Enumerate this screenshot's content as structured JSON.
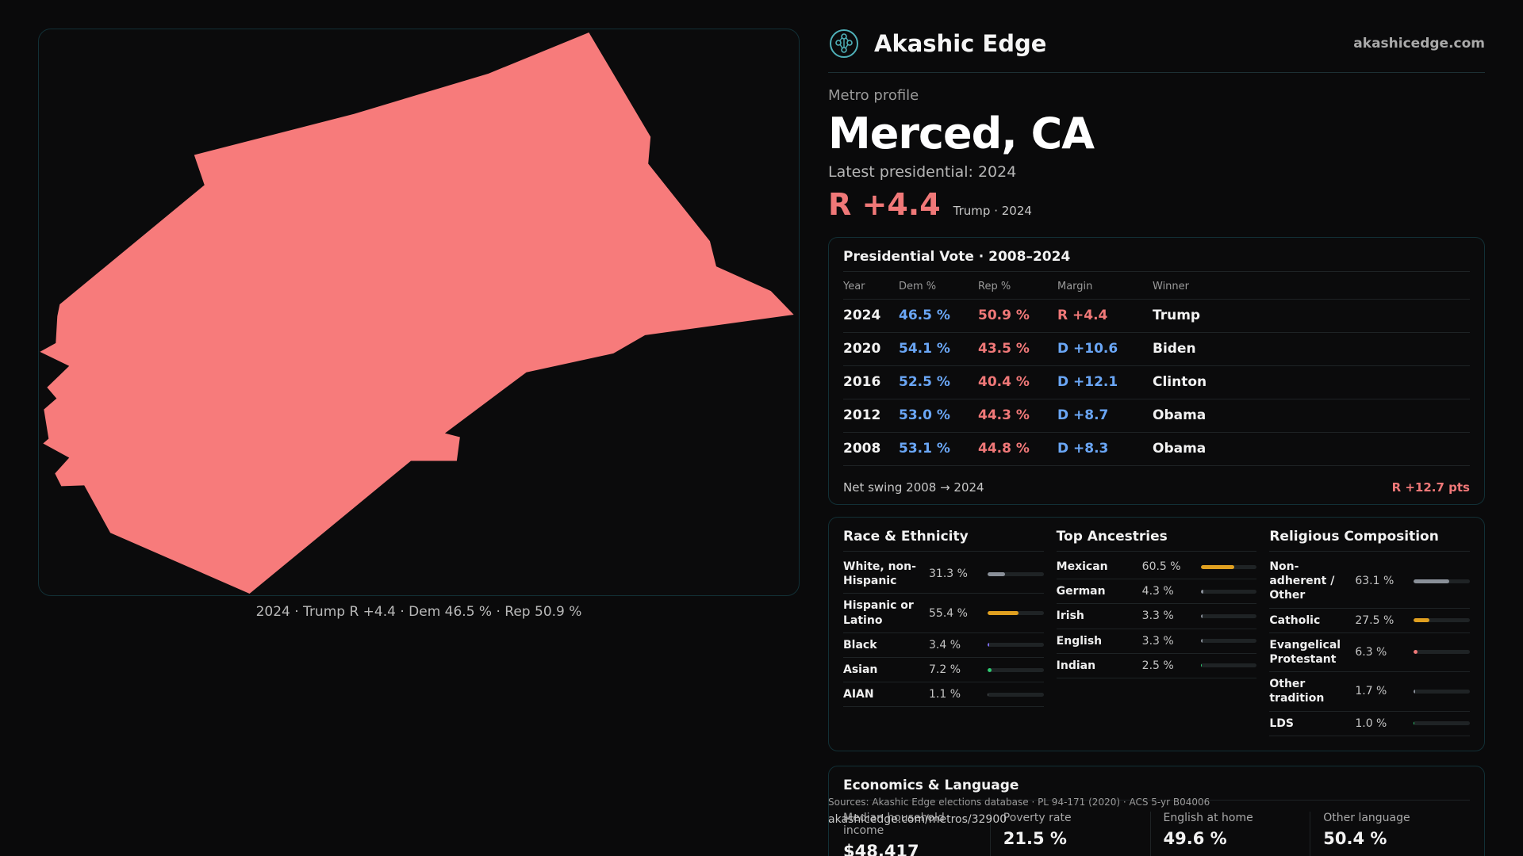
{
  "map": {
    "caption": "2024 · Trump R +4.4 · Dem 46.5 % · Rep 50.9 %",
    "fill_color": "#f77b7b"
  },
  "header": {
    "logo_icon": "tree-of-life-logo-icon",
    "brand": "Akashic Edge",
    "site": "akashicedge.com"
  },
  "profile": {
    "eyebrow": "Metro profile",
    "name": "Merced, CA",
    "latest_label": "Latest presidential: 2024",
    "margin": "R +4.4",
    "margin_sub": "Trump · 2024"
  },
  "vote": {
    "title": "Presidential Vote · 2008–2024",
    "headers": {
      "year": "Year",
      "dem": "Dem %",
      "rep": "Rep %",
      "margin": "Margin",
      "winner": "Winner"
    },
    "rows": [
      {
        "year": "2024",
        "dem": "46.5 %",
        "rep": "50.9 %",
        "margin": "R +4.4",
        "winner": "Trump",
        "party": "R"
      },
      {
        "year": "2020",
        "dem": "54.1 %",
        "rep": "43.5 %",
        "margin": "D +10.6",
        "winner": "Biden",
        "party": "D"
      },
      {
        "year": "2016",
        "dem": "52.5 %",
        "rep": "40.4 %",
        "margin": "D +12.1",
        "winner": "Clinton",
        "party": "D"
      },
      {
        "year": "2012",
        "dem": "53.0 %",
        "rep": "44.3 %",
        "margin": "D +8.7",
        "winner": "Obama",
        "party": "D"
      },
      {
        "year": "2008",
        "dem": "53.1 %",
        "rep": "44.8 %",
        "margin": "D +8.3",
        "winner": "Obama",
        "party": "D"
      }
    ],
    "swing_label": "Net swing 2008 → 2024",
    "swing_value": "R +12.7 pts"
  },
  "race": {
    "title": "Race & Ethnicity",
    "rows": [
      {
        "label": "White, non-Hispanic",
        "pct": "31.3 %",
        "value": 31.3,
        "color": "#8a9099"
      },
      {
        "label": "Hispanic or Latino",
        "pct": "55.4 %",
        "value": 55.4,
        "color": "#e0a020"
      },
      {
        "label": "Black",
        "pct": "3.4 %",
        "value": 3.4,
        "color": "#7b6cf0"
      },
      {
        "label": "Asian",
        "pct": "7.2 %",
        "value": 7.2,
        "color": "#2ecc71"
      },
      {
        "label": "AIAN",
        "pct": "1.1 %",
        "value": 1.1,
        "color": "#555a5e"
      }
    ]
  },
  "ancestry": {
    "title": "Top Ancestries",
    "rows": [
      {
        "label": "Mexican",
        "pct": "60.5 %",
        "value": 60.5,
        "color": "#e0a020"
      },
      {
        "label": "German",
        "pct": "4.3 %",
        "value": 4.3,
        "color": "#8a9099"
      },
      {
        "label": "Irish",
        "pct": "3.3 %",
        "value": 3.3,
        "color": "#8a9099"
      },
      {
        "label": "English",
        "pct": "3.3 %",
        "value": 3.3,
        "color": "#8a9099"
      },
      {
        "label": "Indian",
        "pct": "2.5 %",
        "value": 2.5,
        "color": "#2ecc71"
      }
    ]
  },
  "religion": {
    "title": "Religious Composition",
    "rows": [
      {
        "label": "Non-adherent / Other",
        "pct": "63.1 %",
        "value": 63.1,
        "color": "#8a9099"
      },
      {
        "label": "Catholic",
        "pct": "27.5 %",
        "value": 27.5,
        "color": "#e0a020"
      },
      {
        "label": "Evangelical Protestant",
        "pct": "6.3 %",
        "value": 6.3,
        "color": "#f07878"
      },
      {
        "label": "Other tradition",
        "pct": "1.7 %",
        "value": 1.7,
        "color": "#8a9099"
      },
      {
        "label": "LDS",
        "pct": "1.0 %",
        "value": 1.0,
        "color": "#2ecc71"
      }
    ]
  },
  "economics": {
    "title": "Economics & Language",
    "cells": [
      {
        "label": "Median household income",
        "value": "$48,417"
      },
      {
        "label": "Poverty rate",
        "value": "21.5 %"
      },
      {
        "label": "English at home",
        "value": "49.6 %"
      },
      {
        "label": "Other language",
        "value": "50.4 %"
      }
    ]
  },
  "footer": {
    "sources": "Sources: Akashic Edge elections database · PL 94-171 (2020) · ACS 5-yr B04006",
    "permalink": "akashicedge.com/metros/32900"
  }
}
